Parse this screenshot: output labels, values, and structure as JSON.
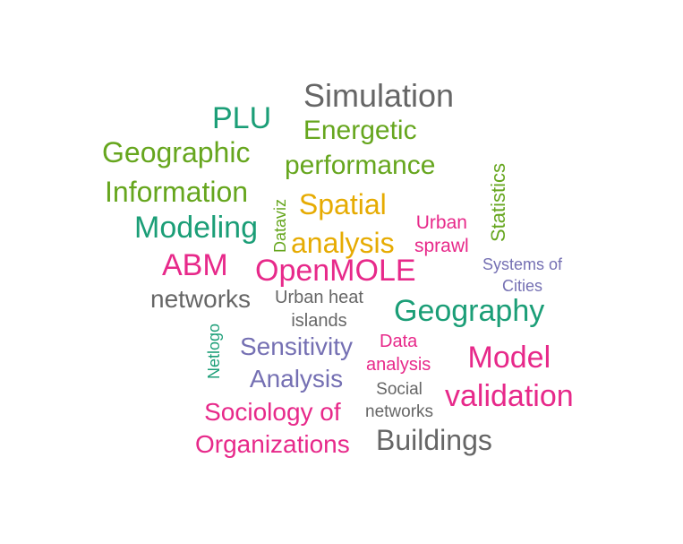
{
  "colors": {
    "gray": "#666666",
    "teal": "#1b9e77",
    "green": "#66a61e",
    "gold": "#e6ab02",
    "magenta": "#e7298a",
    "purple": "#7570b3"
  },
  "words": {
    "simulation": "Simulation",
    "plu": "PLU",
    "energetic_1": "Energetic",
    "energetic_2": "performance",
    "geographic": "Geographic",
    "information": "Information",
    "spatial_1": "Spatial",
    "spatial_2": "analysis",
    "urban_sprawl_1": "Urban",
    "urban_sprawl_2": "sprawl",
    "statistics": "Statistics",
    "dataviz": "Dataviz",
    "modeling": "Modeling",
    "abm": "ABM",
    "openmole": "OpenMOLE",
    "systems_of_cities_1": "Systems of",
    "systems_of_cities_2": "Cities",
    "networks": "networks",
    "urban_heat_1": "Urban heat",
    "urban_heat_2": "islands",
    "geography": "Geography",
    "netlogo": "Netlogo",
    "sensitivity_1": "Sensitivity",
    "sensitivity_2": "Analysis",
    "data_analysis_1": "Data",
    "data_analysis_2": "analysis",
    "model_validation_1": "Model",
    "model_validation_2": "validation",
    "social_networks_1": "Social",
    "social_networks_2": "networks",
    "sociology_1": "Sociology of",
    "sociology_2": "Organizations",
    "buildings": "Buildings"
  }
}
